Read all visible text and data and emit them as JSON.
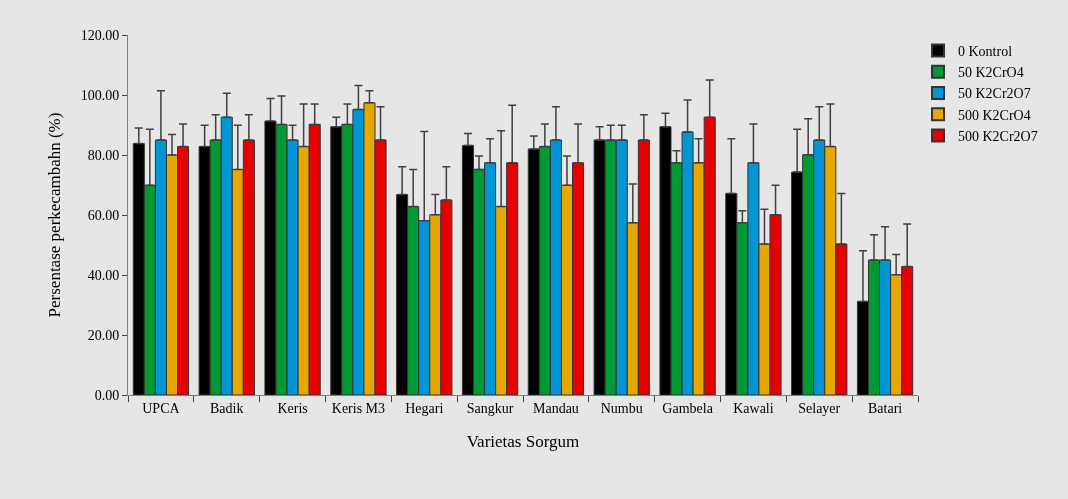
{
  "chart_data": {
    "type": "bar",
    "xlabel": "Varietas Sorgum",
    "ylabel": "Persentase perkecambahn (%)",
    "categories": [
      "UPCA",
      "Badik",
      "Keris",
      "Keris M3",
      "Hegari",
      "Sangkur",
      "Mandau",
      "Numbu",
      "Gambela",
      "Kawali",
      "Selayer",
      "Batari"
    ],
    "series": [
      {
        "name": "0 Kontrol",
        "color": "#000000",
        "values": [
          83.8,
          82.8,
          91.3,
          89.4,
          66.8,
          83.2,
          82.0,
          85.0,
          89.4,
          67.2,
          74.3,
          31.2
        ],
        "errors": [
          [
            83.8,
            89.0
          ],
          [
            82.8,
            89.9
          ],
          [
            91.3,
            98.8
          ],
          [
            89.4,
            92.6
          ],
          [
            66.8,
            76.1
          ],
          [
            83.2,
            87.2
          ],
          [
            82.0,
            86.3
          ],
          [
            85.0,
            89.4
          ],
          [
            89.4,
            93.9
          ],
          [
            67.2,
            85.4
          ],
          [
            74.3,
            88.6
          ],
          [
            31.2,
            48.1
          ]
        ]
      },
      {
        "name": "50 K2CrO4",
        "color": "#009933",
        "values": [
          69.9,
          85.0,
          90.2,
          90.2,
          62.8,
          75.2,
          82.8,
          85.0,
          77.4,
          57.4,
          80.1,
          45.0
        ],
        "errors": [
          [
            69.9,
            88.6
          ],
          [
            85.0,
            93.4
          ],
          [
            90.2,
            99.7
          ],
          [
            90.2,
            97.0
          ],
          [
            62.8,
            75.2
          ],
          [
            75.2,
            79.7
          ],
          [
            82.8,
            90.3
          ],
          [
            85.0,
            89.9
          ],
          [
            77.4,
            81.4
          ],
          [
            57.4,
            61.4
          ],
          [
            80.1,
            92.1
          ],
          [
            45.0,
            53.4
          ]
        ]
      },
      {
        "name": "50 K2Cr2O7",
        "color": "#0096d6",
        "values": [
          85.0,
          92.6,
          85.0,
          95.2,
          58.1,
          77.4,
          85.0,
          85.0,
          87.7,
          77.4,
          85.0,
          45.0
        ],
        "errors": [
          [
            85.0,
            101.4
          ],
          [
            92.6,
            100.6
          ],
          [
            85.0,
            89.9
          ],
          [
            95.2,
            103.2
          ],
          [
            58.1,
            87.8
          ],
          [
            77.4,
            85.4
          ],
          [
            85.0,
            96.1
          ],
          [
            85.0,
            89.9
          ],
          [
            87.7,
            98.3
          ],
          [
            77.4,
            90.3
          ],
          [
            85.0,
            96.1
          ],
          [
            45.0,
            56.1
          ]
        ]
      },
      {
        "name": "500 K2CrO4",
        "color": "#e6a800",
        "values": [
          80.0,
          75.2,
          82.8,
          97.4,
          60.1,
          62.8,
          69.9,
          57.4,
          77.4,
          50.3,
          82.8,
          40.1
        ],
        "errors": [
          [
            80.0,
            86.8
          ],
          [
            75.2,
            89.9
          ],
          [
            82.8,
            97.0
          ],
          [
            97.4,
            101.4
          ],
          [
            60.1,
            66.8
          ],
          [
            62.8,
            88.1
          ],
          [
            69.9,
            79.7
          ],
          [
            57.4,
            70.3
          ],
          [
            77.4,
            85.4
          ],
          [
            50.3,
            61.9
          ],
          [
            82.8,
            97.0
          ],
          [
            40.1,
            46.8
          ]
        ]
      },
      {
        "name": "500 K2Cr2O7",
        "color": "#e60000",
        "values": [
          82.8,
          85.0,
          90.2,
          85.0,
          65.0,
          77.4,
          77.4,
          85.0,
          92.6,
          60.1,
          50.3,
          42.8
        ],
        "errors": [
          [
            82.8,
            90.3
          ],
          [
            85.0,
            93.4
          ],
          [
            90.2,
            97.0
          ],
          [
            85.0,
            96.1
          ],
          [
            65.0,
            76.1
          ],
          [
            77.4,
            96.6
          ],
          [
            77.4,
            90.3
          ],
          [
            85.0,
            93.4
          ],
          [
            92.6,
            105.0
          ],
          [
            60.1,
            69.9
          ],
          [
            50.3,
            67.2
          ],
          [
            42.8,
            57.0
          ]
        ]
      }
    ],
    "ylim": [
      0,
      120
    ],
    "yticks": [
      {
        "value": 0,
        "label": "0.00"
      },
      {
        "value": 20,
        "label": "20.00"
      },
      {
        "value": 40,
        "label": "40.00"
      },
      {
        "value": 60,
        "label": "60.00"
      },
      {
        "value": 80,
        "label": "80.00"
      },
      {
        "value": 100,
        "label": "100.00"
      },
      {
        "value": 120,
        "label": "120.00"
      }
    ],
    "legend": "top right",
    "grid": false
  }
}
